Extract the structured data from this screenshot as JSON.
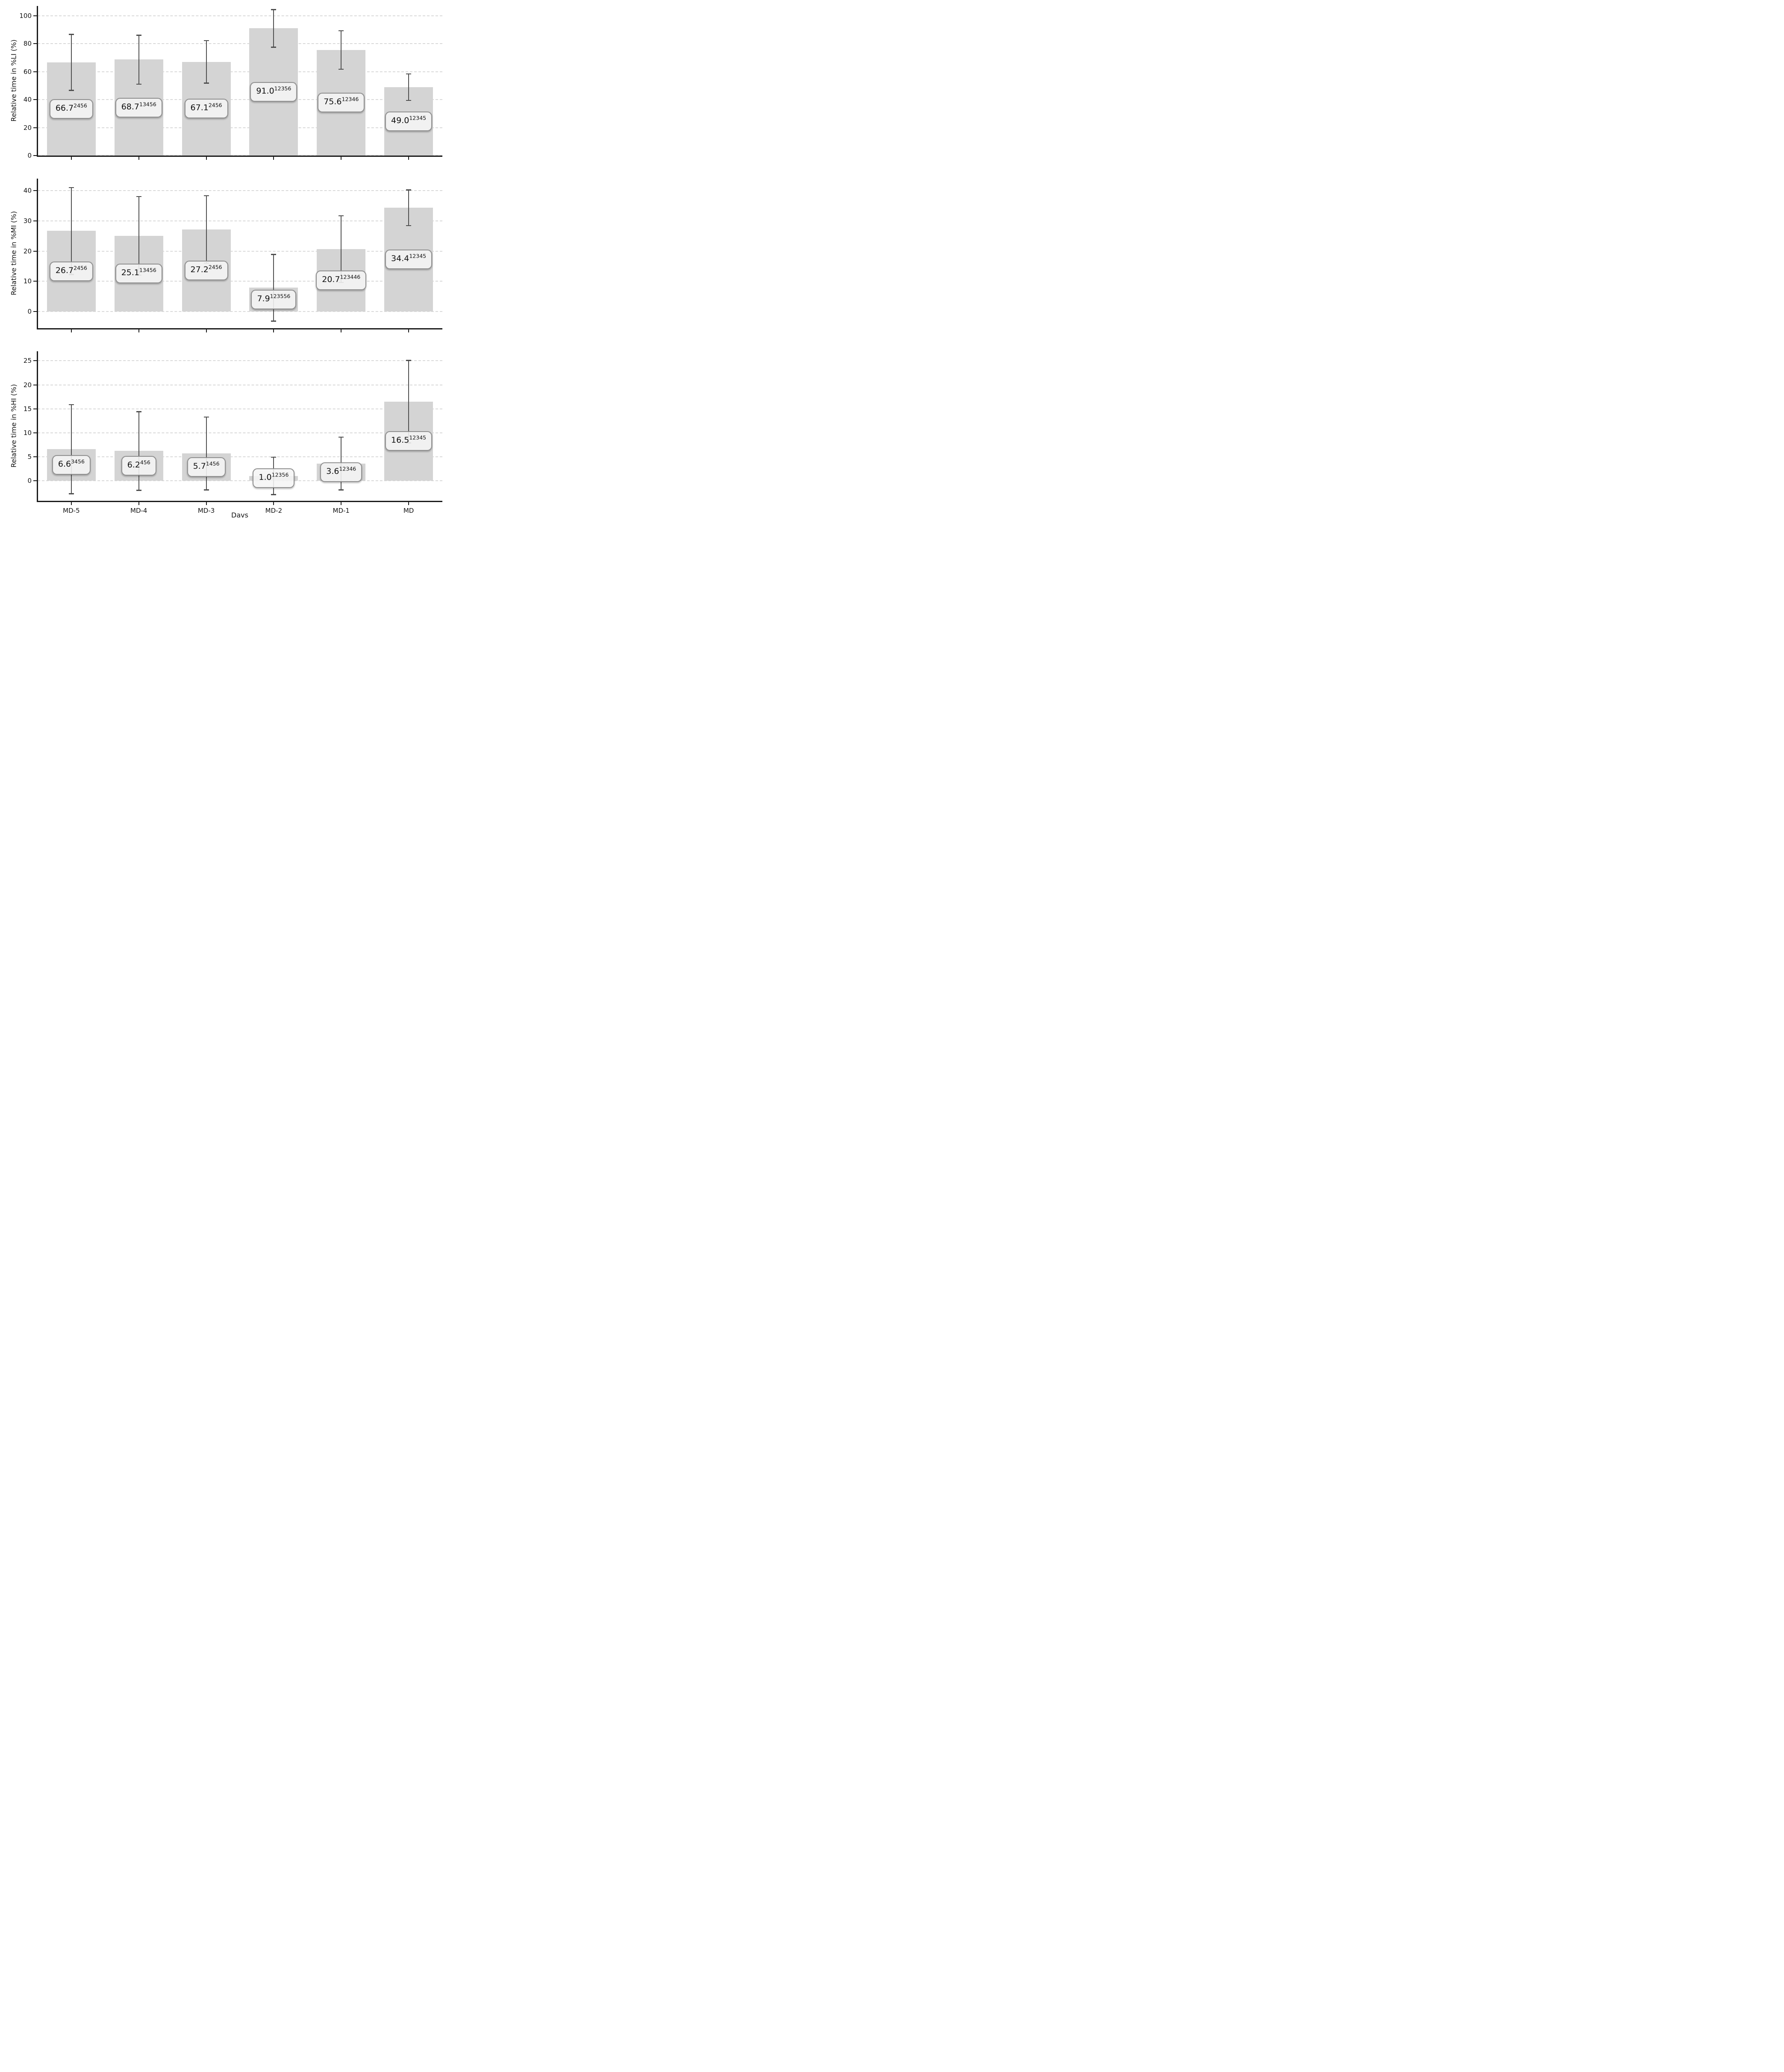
{
  "figure": {
    "xlabel": "Davs",
    "categories": [
      "MD-5",
      "MD-4",
      "MD-3",
      "MD-2",
      "MD-1",
      "MD"
    ]
  },
  "style": {
    "bar_fill": "#d4d4d4",
    "error_color": "#4f4f4f",
    "grid_color": "#d9d9d9",
    "spine_color": "#1a1a1a",
    "label_box_bg": "#f5f5f5",
    "label_box_border": "#8f8f8f",
    "text_color": "#111111"
  },
  "chart_data": [
    {
      "type": "bar",
      "ylabel": "Relative time in %LI (%)",
      "xlabel": "Davs",
      "categories": [
        "MD-5",
        "MD-4",
        "MD-3",
        "MD-2",
        "MD-1",
        "MD"
      ],
      "values": [
        66.7,
        68.7,
        67.1,
        91.0,
        75.6,
        49.0
      ],
      "errors": [
        20.0,
        17.5,
        15.2,
        13.5,
        13.8,
        9.5
      ],
      "value_labels": [
        {
          "text": "66.7",
          "sup": "2456"
        },
        {
          "text": "68.7",
          "sup": "13456"
        },
        {
          "text": "67.1",
          "sup": "2456"
        },
        {
          "text": "91.0",
          "sup": "12356"
        },
        {
          "text": "75.6",
          "sup": "12346"
        },
        {
          "text": "49.0",
          "sup": "12345"
        }
      ],
      "yticks": [
        0,
        20,
        40,
        60,
        80,
        100
      ],
      "ylim": [
        0,
        107
      ],
      "grid": "dashed-horizontal",
      "legend": "none"
    },
    {
      "type": "bar",
      "ylabel": "Relative time in %MI (%)",
      "xlabel": "Davs",
      "categories": [
        "MD-5",
        "MD-4",
        "MD-3",
        "MD-2",
        "MD-1",
        "MD"
      ],
      "values": [
        26.7,
        25.1,
        27.2,
        7.9,
        20.7,
        34.4
      ],
      "errors": [
        14.4,
        13.0,
        11.2,
        11.0,
        11.0,
        5.9
      ],
      "value_labels": [
        {
          "text": "26.7",
          "sup": "2456"
        },
        {
          "text": "25.1",
          "sup": "13456"
        },
        {
          "text": "27.2",
          "sup": "2456"
        },
        {
          "text": "7.9",
          "sup": "123556"
        },
        {
          "text": "20.7",
          "sup": "123446"
        },
        {
          "text": "34.4",
          "sup": "12345"
        }
      ],
      "yticks": [
        0,
        10,
        20,
        30,
        40
      ],
      "ylim": [
        -5.5,
        44
      ],
      "grid": "dashed-horizontal",
      "legend": "none"
    },
    {
      "type": "bar",
      "ylabel": "Relative time in %HI (%)",
      "xlabel": "Davs",
      "categories": [
        "MD-5",
        "MD-4",
        "MD-3",
        "MD-2",
        "MD-1",
        "MD"
      ],
      "values": [
        6.6,
        6.2,
        5.7,
        1.0,
        3.6,
        16.5
      ],
      "errors": [
        9.3,
        8.2,
        7.6,
        3.9,
        5.5,
        8.6
      ],
      "value_labels": [
        {
          "text": "6.6",
          "sup": "3456"
        },
        {
          "text": "6.2",
          "sup": "456"
        },
        {
          "text": "5.7",
          "sup": "1456"
        },
        {
          "text": "1.0",
          "sup": "12356"
        },
        {
          "text": "3.6",
          "sup": "12346"
        },
        {
          "text": "16.5",
          "sup": "12345"
        }
      ],
      "yticks": [
        0,
        5,
        10,
        15,
        20,
        25
      ],
      "ylim": [
        -4.2,
        27
      ],
      "grid": "dashed-horizontal",
      "legend": "none"
    }
  ]
}
